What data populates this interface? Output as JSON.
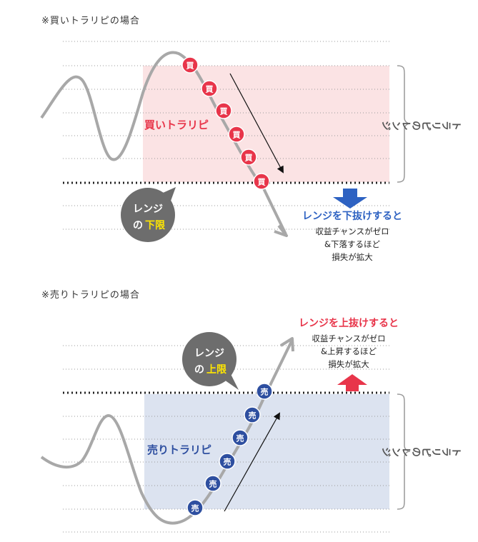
{
  "buy_section": {
    "heading": "※買いトラリピの場合",
    "zone_label": "買いトラリピ",
    "order_glyph": "買",
    "range_label": "トラリピのレンジ",
    "bubble_line1": "レンジ",
    "bubble_prefix": "の",
    "bubble_emphasis": "下限",
    "note_title": "レンジを下抜けすると",
    "note_line1": "収益チャンスがゼロ",
    "note_line2": "&下落するほど",
    "note_line3": "損失が拡大"
  },
  "sell_section": {
    "heading": "※売りトラリピの場合",
    "zone_label": "売りトラリピ",
    "order_glyph": "売",
    "range_label": "トラリピのレンジ",
    "bubble_line1": "レンジ",
    "bubble_prefix": "の",
    "bubble_emphasis": "上限",
    "note_title": "レンジを上抜けすると",
    "note_line1": "収益チャンスがゼロ",
    "note_line2": "&上昇するほど",
    "note_line3": "損失が拡大"
  },
  "colors": {
    "buy_accent": "#e8354a",
    "buy_zone": "#fbe3e4",
    "sell_accent": "#2e4fa0",
    "sell_zone": "#dce3f0",
    "arrow_down": "#2e62c2",
    "arrow_up": "#e8354a",
    "bubble": "#6d6d6d",
    "bubble_emphasis": "#ffe600",
    "price_line": "#a8a8a8"
  }
}
